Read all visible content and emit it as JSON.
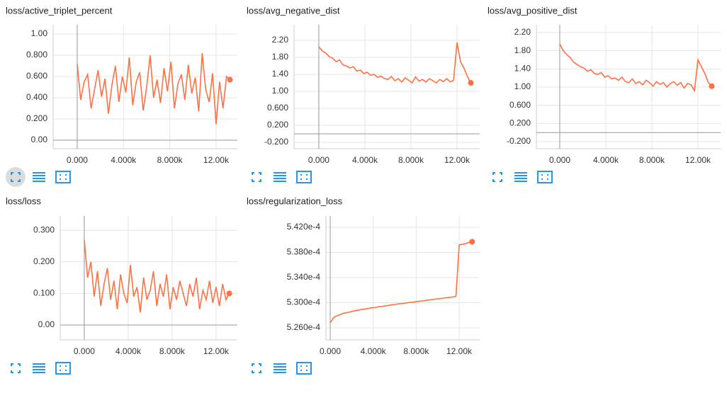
{
  "chart_data": [
    {
      "type": "line",
      "title": "loss/active_triplet_percent",
      "color": "#ff7043",
      "grid": true,
      "x": [
        0,
        300,
        600,
        900,
        1200,
        1500,
        1800,
        2100,
        2400,
        2700,
        3000,
        3300,
        3600,
        3900,
        4200,
        4500,
        4800,
        5100,
        5400,
        5700,
        6000,
        6300,
        6600,
        6900,
        7200,
        7500,
        7800,
        8100,
        8400,
        8700,
        9000,
        9300,
        9600,
        9900,
        10200,
        10500,
        10800,
        11100,
        11400,
        11700,
        12000,
        12300,
        12600,
        12900,
        13200
      ],
      "values": [
        0.72,
        0.38,
        0.55,
        0.62,
        0.3,
        0.48,
        0.66,
        0.41,
        0.58,
        0.25,
        0.52,
        0.7,
        0.36,
        0.6,
        0.45,
        0.78,
        0.33,
        0.55,
        0.64,
        0.28,
        0.5,
        0.8,
        0.4,
        0.57,
        0.35,
        0.68,
        0.46,
        0.74,
        0.3,
        0.53,
        0.62,
        0.38,
        0.71,
        0.44,
        0.59,
        0.27,
        0.82,
        0.48,
        0.36,
        0.63,
        0.15,
        0.55,
        0.3,
        0.6,
        0.57
      ],
      "xlim": [
        -2080,
        13840
      ],
      "ylim": [
        -0.08,
        1.087
      ],
      "xticks": [
        {
          "value": 0,
          "label": "0.000"
        },
        {
          "value": 4000,
          "label": "4.000k"
        },
        {
          "value": 8000,
          "label": "8.000k"
        },
        {
          "value": 12000,
          "label": "12.00k"
        }
      ],
      "yticks": [
        {
          "value": 0,
          "label": "0.00"
        },
        {
          "value": 0.2,
          "label": "0.200"
        },
        {
          "value": 0.4,
          "label": "0.400"
        },
        {
          "value": 0.6,
          "label": "0.600"
        },
        {
          "value": 0.8,
          "label": "0.800"
        },
        {
          "value": 1,
          "label": "1.00"
        }
      ]
    },
    {
      "type": "line",
      "title": "loss/avg_negative_dist",
      "color": "#ff7043",
      "grid": true,
      "x": [
        0,
        300,
        600,
        900,
        1200,
        1500,
        1800,
        2100,
        2400,
        2700,
        3000,
        3300,
        3600,
        3900,
        4200,
        4500,
        4800,
        5100,
        5400,
        5700,
        6000,
        6300,
        6600,
        6900,
        7200,
        7500,
        7800,
        8100,
        8400,
        8700,
        9000,
        9300,
        9600,
        9900,
        10200,
        10500,
        10800,
        11100,
        11400,
        11700,
        12000,
        12300,
        12600,
        12900,
        13200
      ],
      "values": [
        2.05,
        1.95,
        1.9,
        1.82,
        1.78,
        1.7,
        1.74,
        1.62,
        1.6,
        1.55,
        1.58,
        1.48,
        1.5,
        1.42,
        1.45,
        1.38,
        1.4,
        1.33,
        1.36,
        1.3,
        1.28,
        1.35,
        1.25,
        1.3,
        1.22,
        1.32,
        1.26,
        1.2,
        1.34,
        1.24,
        1.28,
        1.22,
        1.3,
        1.25,
        1.2,
        1.28,
        1.23,
        1.3,
        1.22,
        1.26,
        2.15,
        1.7,
        1.55,
        1.35,
        1.2
      ],
      "xlim": [
        -2150,
        13970
      ],
      "ylim": [
        -0.35,
        2.567
      ],
      "xticks": [
        {
          "value": 0,
          "label": "0.000"
        },
        {
          "value": 4000,
          "label": "4.000k"
        },
        {
          "value": 8000,
          "label": "8.000k"
        },
        {
          "value": 12000,
          "label": "12.00k"
        }
      ],
      "yticks": [
        {
          "value": -0.2,
          "label": "-0.200"
        },
        {
          "value": 0.2,
          "label": "0.200"
        },
        {
          "value": 0.6,
          "label": "0.600"
        },
        {
          "value": 1,
          "label": "1.00"
        },
        {
          "value": 1.4,
          "label": "1.40"
        },
        {
          "value": 1.8,
          "label": "1.80"
        },
        {
          "value": 2.2,
          "label": "2.20"
        }
      ]
    },
    {
      "type": "line",
      "title": "loss/avg_positive_dist",
      "color": "#ff7043",
      "grid": true,
      "x": [
        0,
        300,
        600,
        900,
        1200,
        1500,
        1800,
        2100,
        2400,
        2700,
        3000,
        3300,
        3600,
        3900,
        4200,
        4500,
        4800,
        5100,
        5400,
        5700,
        6000,
        6300,
        6600,
        6900,
        7200,
        7500,
        7800,
        8100,
        8400,
        8700,
        9000,
        9300,
        9600,
        9900,
        10200,
        10500,
        10800,
        11100,
        11400,
        11700,
        12000,
        12300,
        12600,
        12900,
        13200
      ],
      "values": [
        1.95,
        1.8,
        1.72,
        1.65,
        1.55,
        1.5,
        1.45,
        1.42,
        1.35,
        1.38,
        1.3,
        1.28,
        1.32,
        1.22,
        1.25,
        1.18,
        1.2,
        1.15,
        1.22,
        1.12,
        1.1,
        1.18,
        1.08,
        1.12,
        1.05,
        1.15,
        1.1,
        1.02,
        1.12,
        1.06,
        1.1,
        1.0,
        1.08,
        1.12,
        1.04,
        1.1,
        0.98,
        1.08,
        1.05,
        0.92,
        1.6,
        1.45,
        1.3,
        1.1,
        1.02
      ],
      "xlim": [
        -2030,
        13970
      ],
      "ylim": [
        -0.355,
        2.371
      ],
      "xticks": [
        {
          "value": 0,
          "label": "0.000"
        },
        {
          "value": 4000,
          "label": "4.000k"
        },
        {
          "value": 8000,
          "label": "8.000k"
        },
        {
          "value": 12000,
          "label": "12.00k"
        }
      ],
      "yticks": [
        {
          "value": -0.2,
          "label": "-0.200"
        },
        {
          "value": 0.2,
          "label": "0.200"
        },
        {
          "value": 0.6,
          "label": "0.600"
        },
        {
          "value": 1,
          "label": "1.00"
        },
        {
          "value": 1.4,
          "label": "1.40"
        },
        {
          "value": 1.8,
          "label": "1.80"
        },
        {
          "value": 2.2,
          "label": "2.20"
        }
      ]
    },
    {
      "type": "line",
      "title": "loss/loss",
      "color": "#ff7043",
      "grid": true,
      "x": [
        0,
        300,
        600,
        900,
        1200,
        1500,
        1800,
        2100,
        2400,
        2700,
        3000,
        3300,
        3600,
        3900,
        4200,
        4500,
        4800,
        5100,
        5400,
        5700,
        6000,
        6300,
        6600,
        6900,
        7200,
        7500,
        7800,
        8100,
        8400,
        8700,
        9000,
        9300,
        9600,
        9900,
        10200,
        10500,
        10800,
        11100,
        11400,
        11700,
        12000,
        12300,
        12600,
        12900,
        13200
      ],
      "values": [
        0.27,
        0.15,
        0.2,
        0.09,
        0.17,
        0.06,
        0.13,
        0.18,
        0.08,
        0.14,
        0.05,
        0.16,
        0.1,
        0.07,
        0.19,
        0.09,
        0.12,
        0.04,
        0.15,
        0.08,
        0.11,
        0.17,
        0.06,
        0.13,
        0.09,
        0.16,
        0.05,
        0.12,
        0.08,
        0.14,
        0.1,
        0.06,
        0.13,
        0.09,
        0.15,
        0.05,
        0.11,
        0.08,
        0.14,
        0.07,
        0.12,
        0.06,
        0.13,
        0.08,
        0.1
      ],
      "xlim": [
        -2190,
        13940
      ],
      "ylim": [
        -0.047,
        0.345
      ],
      "xticks": [
        {
          "value": 0,
          "label": "0.000"
        },
        {
          "value": 4000,
          "label": "4.000k"
        },
        {
          "value": 8000,
          "label": "8.000k"
        },
        {
          "value": 12000,
          "label": "12.00k"
        }
      ],
      "yticks": [
        {
          "value": 0,
          "label": "0.00"
        },
        {
          "value": 0.1,
          "label": "0.100"
        },
        {
          "value": 0.2,
          "label": "0.200"
        },
        {
          "value": 0.3,
          "label": "0.300"
        }
      ]
    },
    {
      "type": "line",
      "title": "loss/regularization_loss",
      "color": "#ff7043",
      "grid": true,
      "x": [
        0,
        300,
        600,
        900,
        1200,
        1500,
        1800,
        2100,
        2400,
        2700,
        3000,
        3300,
        3600,
        3900,
        4200,
        4500,
        4800,
        5100,
        5400,
        5700,
        6000,
        6300,
        6600,
        6900,
        7200,
        7500,
        7800,
        8100,
        8400,
        8700,
        9000,
        9300,
        9600,
        9900,
        10200,
        10500,
        10800,
        11100,
        11400,
        11700,
        12000,
        12300,
        12600,
        12900,
        13200
      ],
      "values": [
        0.0005268,
        0.0005276,
        0.0005279,
        0.0005281,
        0.0005283,
        0.0005284,
        0.0005285,
        0.00052865,
        0.00052875,
        0.00052885,
        0.00052895,
        0.000529,
        0.0005291,
        0.0005292,
        0.00052925,
        0.00052935,
        0.0005294,
        0.0005295,
        0.00052955,
        0.00052965,
        0.0005297,
        0.0005298,
        0.00052985,
        0.0005299,
        0.00053,
        0.00053005,
        0.0005301,
        0.0005302,
        0.00053025,
        0.0005303,
        0.0005304,
        0.00053045,
        0.0005305,
        0.0005306,
        0.00053065,
        0.0005307,
        0.0005308,
        0.00053085,
        0.0005309,
        0.000531,
        0.0005392,
        0.0005393,
        0.0005394,
        0.0005396,
        0.0005397
      ],
      "xlim": [
        -396,
        13910
      ],
      "ylim": [
        0.00052408,
        0.0005438
      ],
      "xticks": [
        {
          "value": 0,
          "label": "0.000"
        },
        {
          "value": 4000,
          "label": "4.000k"
        },
        {
          "value": 8000,
          "label": "8.000k"
        },
        {
          "value": 12000,
          "label": "12.00k"
        }
      ],
      "yticks": [
        {
          "value": 0.000526,
          "label": "5.260e-4"
        },
        {
          "value": 0.00053,
          "label": "5.300e-4"
        },
        {
          "value": 0.000534,
          "label": "5.340e-4"
        },
        {
          "value": 0.000538,
          "label": "5.380e-4"
        },
        {
          "value": 0.000542,
          "label": "5.420e-4"
        }
      ]
    }
  ]
}
